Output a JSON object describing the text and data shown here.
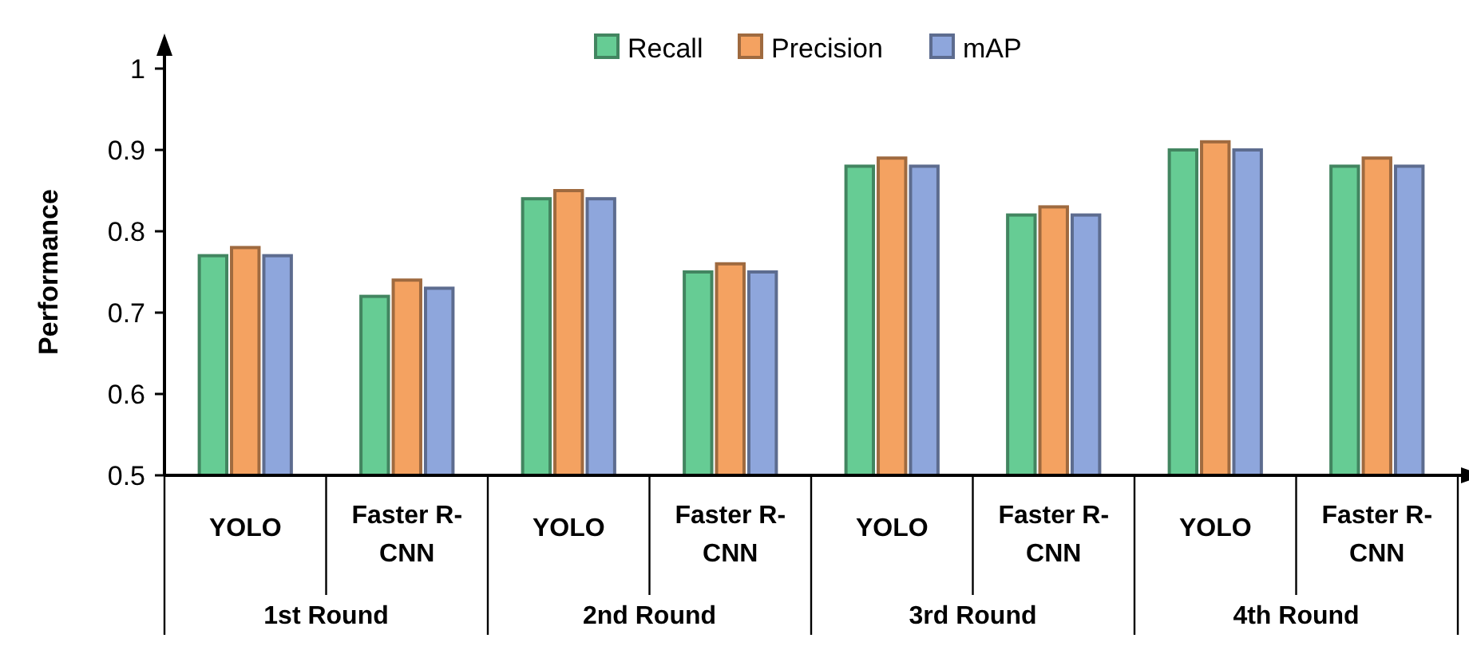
{
  "chart_data": {
    "type": "bar",
    "ylabel": "Performance",
    "categories": [
      "YOLO",
      "Faster R-CNN",
      "YOLO",
      "Faster R-CNN",
      "YOLO",
      "Faster R-CNN",
      "YOLO",
      "Faster R-CNN"
    ],
    "annotations": [
      "1st Round",
      "2nd Round",
      "3rd Round",
      "4th Round"
    ],
    "series": [
      {
        "name": "Recall",
        "color": "#66cc94",
        "values": [
          0.77,
          0.72,
          0.84,
          0.75,
          0.88,
          0.82,
          0.9,
          0.88
        ]
      },
      {
        "name": "Precision",
        "color": "#f4a261",
        "values": [
          0.78,
          0.74,
          0.85,
          0.76,
          0.89,
          0.83,
          0.91,
          0.89
        ]
      },
      {
        "name": "mAP",
        "color": "#8ea6dc",
        "values": [
          0.77,
          0.73,
          0.84,
          0.75,
          0.88,
          0.82,
          0.9,
          0.88
        ]
      }
    ],
    "ylim": [
      0.5,
      1
    ],
    "yticks": [
      0.5,
      0.6,
      0.7,
      0.8,
      0.9,
      1
    ],
    "grid": false,
    "legend": "top"
  }
}
